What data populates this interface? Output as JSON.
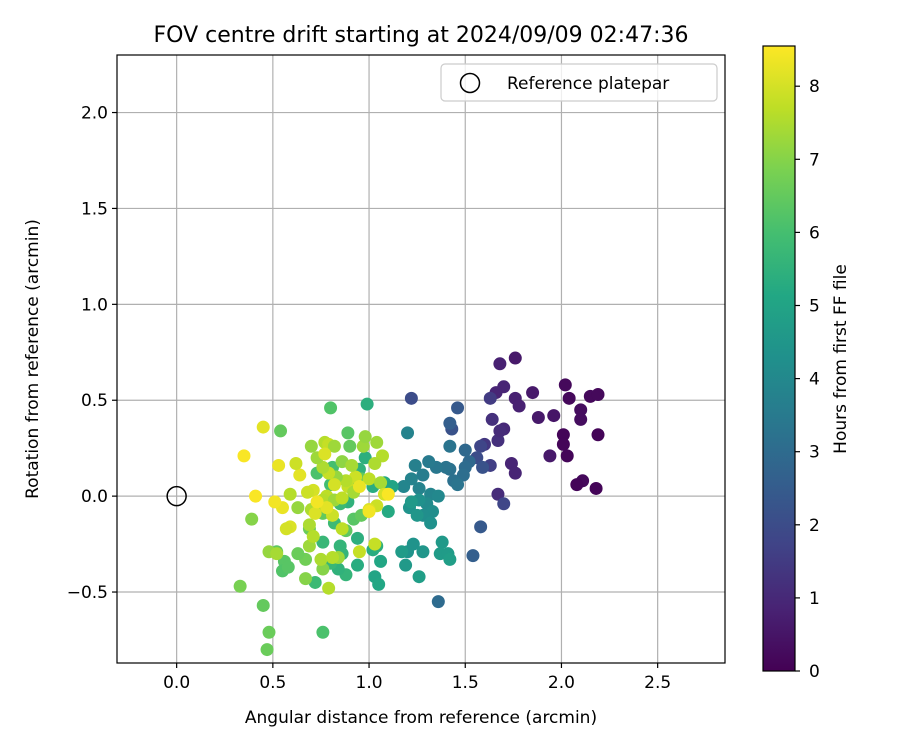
{
  "chart_data": {
    "type": "scatter",
    "title": "FOV centre drift starting at 2024/09/09 02:47:36",
    "xlabel": "Angular distance from reference (arcmin)",
    "ylabel": "Rotation from reference (arcmin)",
    "xlim": [
      -0.31,
      2.85
    ],
    "ylim": [
      -0.87,
      2.3
    ],
    "xticks": [
      0.0,
      0.5,
      1.0,
      1.5,
      2.0,
      2.5
    ],
    "xtick_labels": [
      "0.0",
      "0.5",
      "1.0",
      "1.5",
      "2.0",
      "2.5"
    ],
    "yticks": [
      -0.5,
      0.0,
      0.5,
      1.0,
      1.5,
      2.0
    ],
    "ytick_labels": [
      "−0.5",
      "0.0",
      "0.5",
      "1.0",
      "1.5",
      "2.0"
    ],
    "grid": true,
    "legend": {
      "location": "top-right",
      "entries": [
        {
          "label": "Reference platepar",
          "marker": "open-circle"
        }
      ]
    },
    "reference_point": {
      "x": 0.0,
      "y": 0.0
    },
    "colorbar": {
      "label": "Hours from first FF file",
      "colormap": "viridis",
      "range": [
        0,
        8.55
      ],
      "ticks": [
        0,
        1,
        2,
        3,
        4,
        5,
        6,
        7,
        8
      ],
      "tick_labels": [
        "0",
        "1",
        "2",
        "3",
        "4",
        "5",
        "6",
        "7",
        "8"
      ]
    },
    "points": [
      {
        "x": 1.76,
        "y": 0.72,
        "h": 0.6
      },
      {
        "x": 1.68,
        "y": 0.69,
        "h": 0.8
      },
      {
        "x": 1.7,
        "y": 0.57,
        "h": 0.9
      },
      {
        "x": 1.66,
        "y": 0.54,
        "h": 0.9
      },
      {
        "x": 1.76,
        "y": 0.51,
        "h": 0.8
      },
      {
        "x": 1.78,
        "y": 0.47,
        "h": 0.8
      },
      {
        "x": 1.85,
        "y": 0.54,
        "h": 0.6
      },
      {
        "x": 1.88,
        "y": 0.41,
        "h": 0.6
      },
      {
        "x": 1.96,
        "y": 0.42,
        "h": 0.5
      },
      {
        "x": 1.94,
        "y": 0.21,
        "h": 0.6
      },
      {
        "x": 2.02,
        "y": 0.58,
        "h": 0.2
      },
      {
        "x": 2.04,
        "y": 0.51,
        "h": 0.2
      },
      {
        "x": 2.1,
        "y": 0.45,
        "h": 0.3
      },
      {
        "x": 2.1,
        "y": 0.4,
        "h": 0.3
      },
      {
        "x": 2.15,
        "y": 0.52,
        "h": 0.2
      },
      {
        "x": 2.19,
        "y": 0.53,
        "h": 0.2
      },
      {
        "x": 2.19,
        "y": 0.32,
        "h": 0.1
      },
      {
        "x": 2.01,
        "y": 0.32,
        "h": 0.1
      },
      {
        "x": 2.01,
        "y": 0.27,
        "h": 0.1
      },
      {
        "x": 2.03,
        "y": 0.21,
        "h": 0.1
      },
      {
        "x": 2.11,
        "y": 0.08,
        "h": 0.2
      },
      {
        "x": 2.08,
        "y": 0.06,
        "h": 0.1
      },
      {
        "x": 2.18,
        "y": 0.04,
        "h": 0.1
      },
      {
        "x": 1.74,
        "y": 0.17,
        "h": 0.9
      },
      {
        "x": 1.76,
        "y": 0.12,
        "h": 0.9
      },
      {
        "x": 1.7,
        "y": 0.35,
        "h": 1.0
      },
      {
        "x": 1.67,
        "y": 0.29,
        "h": 1.2
      },
      {
        "x": 1.68,
        "y": 0.34,
        "h": 1.1
      },
      {
        "x": 1.64,
        "y": 0.4,
        "h": 1.2
      },
      {
        "x": 1.63,
        "y": 0.51,
        "h": 1.5
      },
      {
        "x": 1.67,
        "y": 0.01,
        "h": 1.1
      },
      {
        "x": 1.7,
        "y": -0.04,
        "h": 1.8
      },
      {
        "x": 1.22,
        "y": 0.51,
        "h": 2.0
      },
      {
        "x": 1.43,
        "y": 0.35,
        "h": 2.2
      },
      {
        "x": 1.46,
        "y": 0.46,
        "h": 2.4
      },
      {
        "x": 1.6,
        "y": 0.27,
        "h": 1.4
      },
      {
        "x": 1.58,
        "y": 0.26,
        "h": 1.8
      },
      {
        "x": 1.56,
        "y": 0.2,
        "h": 2.0
      },
      {
        "x": 1.63,
        "y": 0.16,
        "h": 1.6
      },
      {
        "x": 1.59,
        "y": 0.15,
        "h": 2.2
      },
      {
        "x": 1.58,
        "y": -0.16,
        "h": 2.4
      },
      {
        "x": 1.54,
        "y": -0.31,
        "h": 2.6
      },
      {
        "x": 1.42,
        "y": 0.38,
        "h": 2.6
      },
      {
        "x": 1.36,
        "y": -0.55,
        "h": 3.0
      },
      {
        "x": 1.5,
        "y": 0.24,
        "h": 2.9
      },
      {
        "x": 1.52,
        "y": 0.18,
        "h": 2.9
      },
      {
        "x": 1.5,
        "y": 0.15,
        "h": 3.0
      },
      {
        "x": 1.49,
        "y": 0.11,
        "h": 3.1
      },
      {
        "x": 1.44,
        "y": 0.08,
        "h": 3.2
      },
      {
        "x": 1.42,
        "y": 0.14,
        "h": 3.2
      },
      {
        "x": 1.4,
        "y": 0.15,
        "h": 3.3
      },
      {
        "x": 1.35,
        "y": 0.15,
        "h": 3.4
      },
      {
        "x": 1.42,
        "y": 0.26,
        "h": 3.3
      },
      {
        "x": 1.46,
        "y": 0.06,
        "h": 3.3
      },
      {
        "x": 1.31,
        "y": 0.18,
        "h": 3.5
      },
      {
        "x": 1.28,
        "y": 0.11,
        "h": 3.6
      },
      {
        "x": 1.24,
        "y": 0.16,
        "h": 3.7
      },
      {
        "x": 1.2,
        "y": 0.33,
        "h": 3.8
      },
      {
        "x": 1.22,
        "y": 0.09,
        "h": 3.8
      },
      {
        "x": 1.18,
        "y": 0.05,
        "h": 3.9
      },
      {
        "x": 1.26,
        "y": 0.04,
        "h": 3.8
      },
      {
        "x": 1.32,
        "y": 0.01,
        "h": 3.9
      },
      {
        "x": 1.36,
        "y": 0.0,
        "h": 4.0
      },
      {
        "x": 1.3,
        "y": -0.04,
        "h": 4.1
      },
      {
        "x": 1.33,
        "y": -0.08,
        "h": 4.2
      },
      {
        "x": 1.28,
        "y": -0.1,
        "h": 4.2
      },
      {
        "x": 1.32,
        "y": -0.14,
        "h": 4.3
      },
      {
        "x": 1.26,
        "y": -0.02,
        "h": 4.3
      },
      {
        "x": 1.21,
        "y": -0.06,
        "h": 4.4
      },
      {
        "x": 1.25,
        "y": -0.1,
        "h": 4.5
      },
      {
        "x": 1.22,
        "y": -0.03,
        "h": 4.6
      },
      {
        "x": 1.2,
        "y": -0.29,
        "h": 4.4
      },
      {
        "x": 1.23,
        "y": -0.25,
        "h": 4.4
      },
      {
        "x": 1.28,
        "y": -0.29,
        "h": 4.5
      },
      {
        "x": 1.38,
        "y": -0.24,
        "h": 4.6
      },
      {
        "x": 1.37,
        "y": -0.3,
        "h": 4.7
      },
      {
        "x": 1.41,
        "y": -0.3,
        "h": 4.7
      },
      {
        "x": 1.42,
        "y": -0.33,
        "h": 4.8
      },
      {
        "x": 1.17,
        "y": -0.29,
        "h": 4.7
      },
      {
        "x": 1.19,
        "y": -0.36,
        "h": 4.6
      },
      {
        "x": 1.26,
        "y": -0.42,
        "h": 4.8
      },
      {
        "x": 1.03,
        "y": -0.42,
        "h": 5.0
      },
      {
        "x": 1.05,
        "y": -0.46,
        "h": 5.1
      },
      {
        "x": 1.06,
        "y": -0.34,
        "h": 5.1
      },
      {
        "x": 1.1,
        "y": -0.08,
        "h": 5.2
      },
      {
        "x": 1.02,
        "y": -0.28,
        "h": 5.3
      },
      {
        "x": 1.04,
        "y": -0.26,
        "h": 5.4
      },
      {
        "x": 1.08,
        "y": 0.07,
        "h": 5.2
      },
      {
        "x": 1.12,
        "y": 0.05,
        "h": 5.0
      },
      {
        "x": 1.02,
        "y": 0.05,
        "h": 5.3
      },
      {
        "x": 0.99,
        "y": 0.48,
        "h": 5.4
      },
      {
        "x": 0.98,
        "y": 0.2,
        "h": 5.4
      },
      {
        "x": 0.95,
        "y": 0.14,
        "h": 5.5
      },
      {
        "x": 0.92,
        "y": 0.05,
        "h": 5.5
      },
      {
        "x": 0.89,
        "y": -0.03,
        "h": 5.5
      },
      {
        "x": 0.94,
        "y": -0.22,
        "h": 5.4
      },
      {
        "x": 0.94,
        "y": -0.36,
        "h": 5.3
      },
      {
        "x": 0.86,
        "y": -0.3,
        "h": 5.6
      },
      {
        "x": 0.88,
        "y": -0.41,
        "h": 5.6
      },
      {
        "x": 0.84,
        "y": -0.38,
        "h": 5.5
      },
      {
        "x": 0.8,
        "y": -0.35,
        "h": 5.7
      },
      {
        "x": 0.85,
        "y": -0.26,
        "h": 5.6
      },
      {
        "x": 0.76,
        "y": -0.24,
        "h": 5.7
      },
      {
        "x": 0.72,
        "y": -0.45,
        "h": 5.8
      },
      {
        "x": 0.76,
        "y": -0.71,
        "h": 6.1
      },
      {
        "x": 0.82,
        "y": -0.14,
        "h": 5.8
      },
      {
        "x": 0.85,
        "y": -0.04,
        "h": 5.8
      },
      {
        "x": 0.8,
        "y": 0.06,
        "h": 5.9
      },
      {
        "x": 0.81,
        "y": 0.15,
        "h": 6.0
      },
      {
        "x": 0.73,
        "y": 0.12,
        "h": 6.1
      },
      {
        "x": 0.8,
        "y": 0.46,
        "h": 6.2
      },
      {
        "x": 0.89,
        "y": 0.33,
        "h": 6.3
      },
      {
        "x": 0.9,
        "y": 0.26,
        "h": 6.5
      },
      {
        "x": 0.96,
        "y": 0.09,
        "h": 6.4
      },
      {
        "x": 0.92,
        "y": -0.12,
        "h": 6.3
      },
      {
        "x": 0.88,
        "y": -0.18,
        "h": 6.4
      },
      {
        "x": 0.96,
        "y": -0.1,
        "h": 6.5
      },
      {
        "x": 0.76,
        "y": -0.09,
        "h": 6.5
      },
      {
        "x": 0.69,
        "y": -0.17,
        "h": 6.6
      },
      {
        "x": 0.67,
        "y": -0.33,
        "h": 6.7
      },
      {
        "x": 0.63,
        "y": -0.3,
        "h": 6.6
      },
      {
        "x": 0.56,
        "y": -0.34,
        "h": 6.3
      },
      {
        "x": 0.55,
        "y": -0.39,
        "h": 6.2
      },
      {
        "x": 0.58,
        "y": -0.37,
        "h": 6.3
      },
      {
        "x": 0.52,
        "y": -0.29,
        "h": 6.4
      },
      {
        "x": 0.54,
        "y": 0.34,
        "h": 6.5
      },
      {
        "x": 0.45,
        "y": -0.57,
        "h": 6.5
      },
      {
        "x": 0.47,
        "y": -0.8,
        "h": 6.6
      },
      {
        "x": 0.48,
        "y": -0.71,
        "h": 6.6
      },
      {
        "x": 0.33,
        "y": -0.47,
        "h": 6.8
      },
      {
        "x": 0.39,
        "y": -0.12,
        "h": 7.0
      },
      {
        "x": 0.48,
        "y": -0.29,
        "h": 7.2
      },
      {
        "x": 0.52,
        "y": -0.3,
        "h": 7.4
      },
      {
        "x": 0.67,
        "y": -0.43,
        "h": 7.0
      },
      {
        "x": 0.76,
        "y": -0.38,
        "h": 7.0
      },
      {
        "x": 0.79,
        "y": -0.48,
        "h": 7.6
      },
      {
        "x": 0.75,
        "y": -0.33,
        "h": 7.5
      },
      {
        "x": 0.84,
        "y": -0.32,
        "h": 7.3
      },
      {
        "x": 0.81,
        "y": -0.32,
        "h": 7.6
      },
      {
        "x": 0.69,
        "y": -0.26,
        "h": 7.3
      },
      {
        "x": 0.71,
        "y": -0.21,
        "h": 7.6
      },
      {
        "x": 0.69,
        "y": -0.15,
        "h": 7.5
      },
      {
        "x": 0.63,
        "y": -0.06,
        "h": 7.2
      },
      {
        "x": 0.7,
        "y": -0.07,
        "h": 7.5
      },
      {
        "x": 0.73,
        "y": -0.04,
        "h": 7.4
      },
      {
        "x": 0.78,
        "y": 0.0,
        "h": 7.7
      },
      {
        "x": 0.76,
        "y": -0.02,
        "h": 7.6
      },
      {
        "x": 0.82,
        "y": -0.02,
        "h": 7.3
      },
      {
        "x": 0.86,
        "y": -0.01,
        "h": 7.7
      },
      {
        "x": 0.89,
        "y": 0.05,
        "h": 7.8
      },
      {
        "x": 0.93,
        "y": 0.1,
        "h": 7.9
      },
      {
        "x": 0.92,
        "y": 0.02,
        "h": 7.4
      },
      {
        "x": 0.88,
        "y": 0.08,
        "h": 7.6
      },
      {
        "x": 0.83,
        "y": 0.1,
        "h": 7.2
      },
      {
        "x": 0.79,
        "y": 0.12,
        "h": 7.8
      },
      {
        "x": 0.76,
        "y": 0.15,
        "h": 7.5
      },
      {
        "x": 0.73,
        "y": 0.2,
        "h": 7.3
      },
      {
        "x": 0.7,
        "y": 0.26,
        "h": 7.2
      },
      {
        "x": 0.77,
        "y": 0.28,
        "h": 7.6
      },
      {
        "x": 0.79,
        "y": 0.27,
        "h": 7.8
      },
      {
        "x": 0.82,
        "y": 0.26,
        "h": 7.3
      },
      {
        "x": 0.86,
        "y": 0.18,
        "h": 7.1
      },
      {
        "x": 0.91,
        "y": 0.16,
        "h": 7.4
      },
      {
        "x": 0.97,
        "y": 0.26,
        "h": 7.3
      },
      {
        "x": 0.98,
        "y": 0.31,
        "h": 7.2
      },
      {
        "x": 1.04,
        "y": 0.28,
        "h": 7.3
      },
      {
        "x": 1.07,
        "y": 0.21,
        "h": 7.6
      },
      {
        "x": 1.03,
        "y": 0.17,
        "h": 7.5
      },
      {
        "x": 1.0,
        "y": 0.09,
        "h": 7.7
      },
      {
        "x": 1.06,
        "y": 0.07,
        "h": 7.4
      },
      {
        "x": 1.08,
        "y": 0.01,
        "h": 8.0
      },
      {
        "x": 1.04,
        "y": -0.05,
        "h": 7.9
      },
      {
        "x": 1.0,
        "y": -0.07,
        "h": 8.1
      },
      {
        "x": 1.03,
        "y": -0.25,
        "h": 7.8
      },
      {
        "x": 0.95,
        "y": -0.29,
        "h": 7.8
      },
      {
        "x": 0.86,
        "y": -0.17,
        "h": 7.7
      },
      {
        "x": 0.81,
        "y": -0.1,
        "h": 7.9
      },
      {
        "x": 0.78,
        "y": -0.06,
        "h": 8.2
      },
      {
        "x": 0.72,
        "y": -0.09,
        "h": 8.1
      },
      {
        "x": 0.71,
        "y": 0.03,
        "h": 8.0
      },
      {
        "x": 0.68,
        "y": 0.02,
        "h": 7.9
      },
      {
        "x": 0.64,
        "y": 0.11,
        "h": 8.2
      },
      {
        "x": 0.62,
        "y": 0.17,
        "h": 7.9
      },
      {
        "x": 0.59,
        "y": 0.01,
        "h": 7.6
      },
      {
        "x": 0.55,
        "y": -0.06,
        "h": 8.3
      },
      {
        "x": 0.51,
        "y": -0.03,
        "h": 8.4
      },
      {
        "x": 0.59,
        "y": -0.16,
        "h": 8.1
      },
      {
        "x": 0.57,
        "y": -0.17,
        "h": 8.0
      },
      {
        "x": 0.53,
        "y": 0.16,
        "h": 8.3
      },
      {
        "x": 0.45,
        "y": 0.36,
        "h": 8.2
      },
      {
        "x": 0.35,
        "y": 0.21,
        "h": 8.5
      },
      {
        "x": 0.41,
        "y": 0.0,
        "h": 8.5
      },
      {
        "x": 0.73,
        "y": -0.03,
        "h": 8.4
      },
      {
        "x": 0.77,
        "y": 0.22,
        "h": 8.1
      },
      {
        "x": 0.82,
        "y": 0.06,
        "h": 8.0
      },
      {
        "x": 0.95,
        "y": 0.05,
        "h": 8.3
      },
      {
        "x": 1.0,
        "y": -0.08,
        "h": 8.4
      },
      {
        "x": 1.1,
        "y": 0.01,
        "h": 8.5
      }
    ]
  }
}
